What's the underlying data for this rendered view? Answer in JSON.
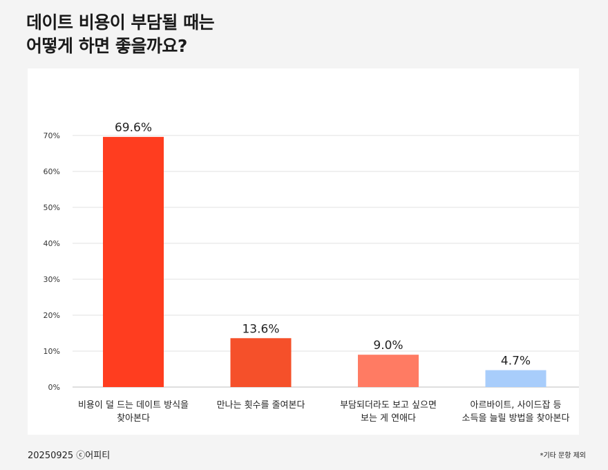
{
  "header": {
    "title_line1": "데이트 비용이 부담될 때는",
    "title_line2": "어떻게 하면 좋을까요?"
  },
  "chart_data": {
    "type": "bar",
    "categories": [
      [
        "비용이 덜 드는 데이트 방식을",
        "찾아본다"
      ],
      [
        "만나는 횟수를 줄여본다"
      ],
      [
        "부담되더라도 보고 싶으면",
        "보는 게 연애다"
      ],
      [
        "아르바이트, 사이드잡 등",
        "소득을 늘릴 방법을 찾아본다"
      ]
    ],
    "values": [
      69.6,
      13.6,
      9.0,
      4.7
    ],
    "value_labels": [
      "69.6%",
      "13.6%",
      "9.0%",
      "4.7%"
    ],
    "colors": [
      "#ff3d1f",
      "#f5502a",
      "#ff7b63",
      "#a8cdfb"
    ],
    "yticks": [
      0,
      10,
      20,
      30,
      40,
      50,
      60,
      70
    ],
    "ytick_labels": [
      "0%",
      "10%",
      "20%",
      "30%",
      "40%",
      "50%",
      "60%",
      "70%"
    ],
    "ylim": [
      0,
      70
    ],
    "grid": true,
    "title": "데이트 비용이 부담될 때는 어떻게 하면 좋을까요?",
    "xlabel": "",
    "ylabel": ""
  },
  "footer": {
    "left": "20250925 ⓒ어피티",
    "right": "*기타 문항 제외"
  }
}
